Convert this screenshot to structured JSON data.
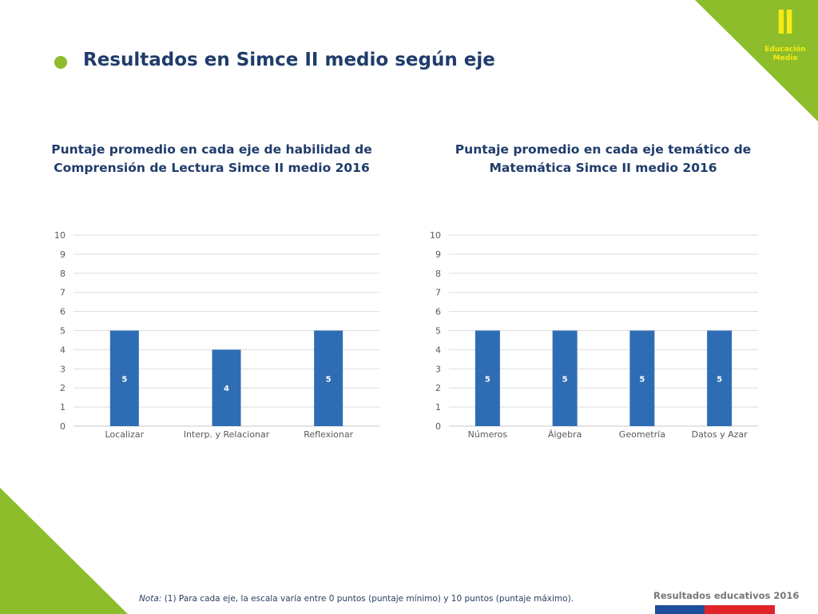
{
  "header": {
    "title": "Resultados en Simce II medio según eje",
    "badge": {
      "roman": "II",
      "line1": "Educación",
      "line2": "Media"
    }
  },
  "colors": {
    "accent": "#8dbd2b",
    "bar": "#2e6db4",
    "title": "#1f3c6b",
    "badge_text": "#f6eb14"
  },
  "chart_data": [
    {
      "type": "bar",
      "title": "Puntaje promedio en cada eje de habilidad de Comprensión de Lectura  Simce II medio 2016",
      "title_lines": [
        "Puntaje promedio en cada eje de habilidad de",
        "Comprensión de Lectura  Simce II medio 2016"
      ],
      "categories": [
        "Localizar",
        "Interp. y Relacionar",
        "Reflexionar"
      ],
      "values": [
        5,
        4,
        5
      ],
      "ylim": [
        0,
        10
      ],
      "yticks": [
        0,
        1,
        2,
        3,
        4,
        5,
        6,
        7,
        8,
        9,
        10
      ],
      "grid": true,
      "legend": "none"
    },
    {
      "type": "bar",
      "title": "Puntaje promedio en cada eje temático de Matemática Simce II medio 2016",
      "title_lines": [
        "Puntaje promedio en cada eje temático de",
        "Matemática Simce II medio 2016"
      ],
      "categories": [
        "Números",
        "Álgebra",
        "Geometría",
        "Datos y Azar"
      ],
      "values": [
        5,
        5,
        5,
        5
      ],
      "ylim": [
        0,
        10
      ],
      "yticks": [
        0,
        1,
        2,
        3,
        4,
        5,
        6,
        7,
        8,
        9,
        10
      ],
      "grid": true,
      "legend": "none"
    }
  ],
  "footer": {
    "note_label": "Nota:",
    "note_text": " (1)  Para cada eje, la escala varía entre 0 puntos (puntaje mínimo) y 10 puntos (puntaje máximo).",
    "brand": "Resultados educativos 2016"
  }
}
